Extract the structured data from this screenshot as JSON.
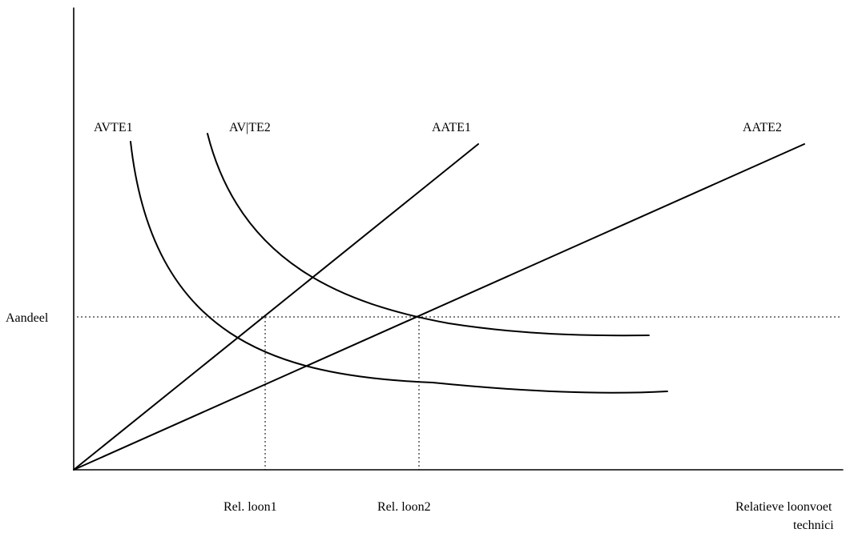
{
  "labels": {
    "avte1": "AVTE1",
    "avte2": "AV|TE2",
    "aate1": "AATE1",
    "aate2": "AATE2",
    "y_axis": "Aandeel",
    "x_tick1": "Rel. loon1",
    "x_tick2": "Rel. loon2",
    "x_axis_line1": "Relatieve loonvoet",
    "x_axis_line2": "technici"
  },
  "colors": {
    "line": "#000000"
  }
}
